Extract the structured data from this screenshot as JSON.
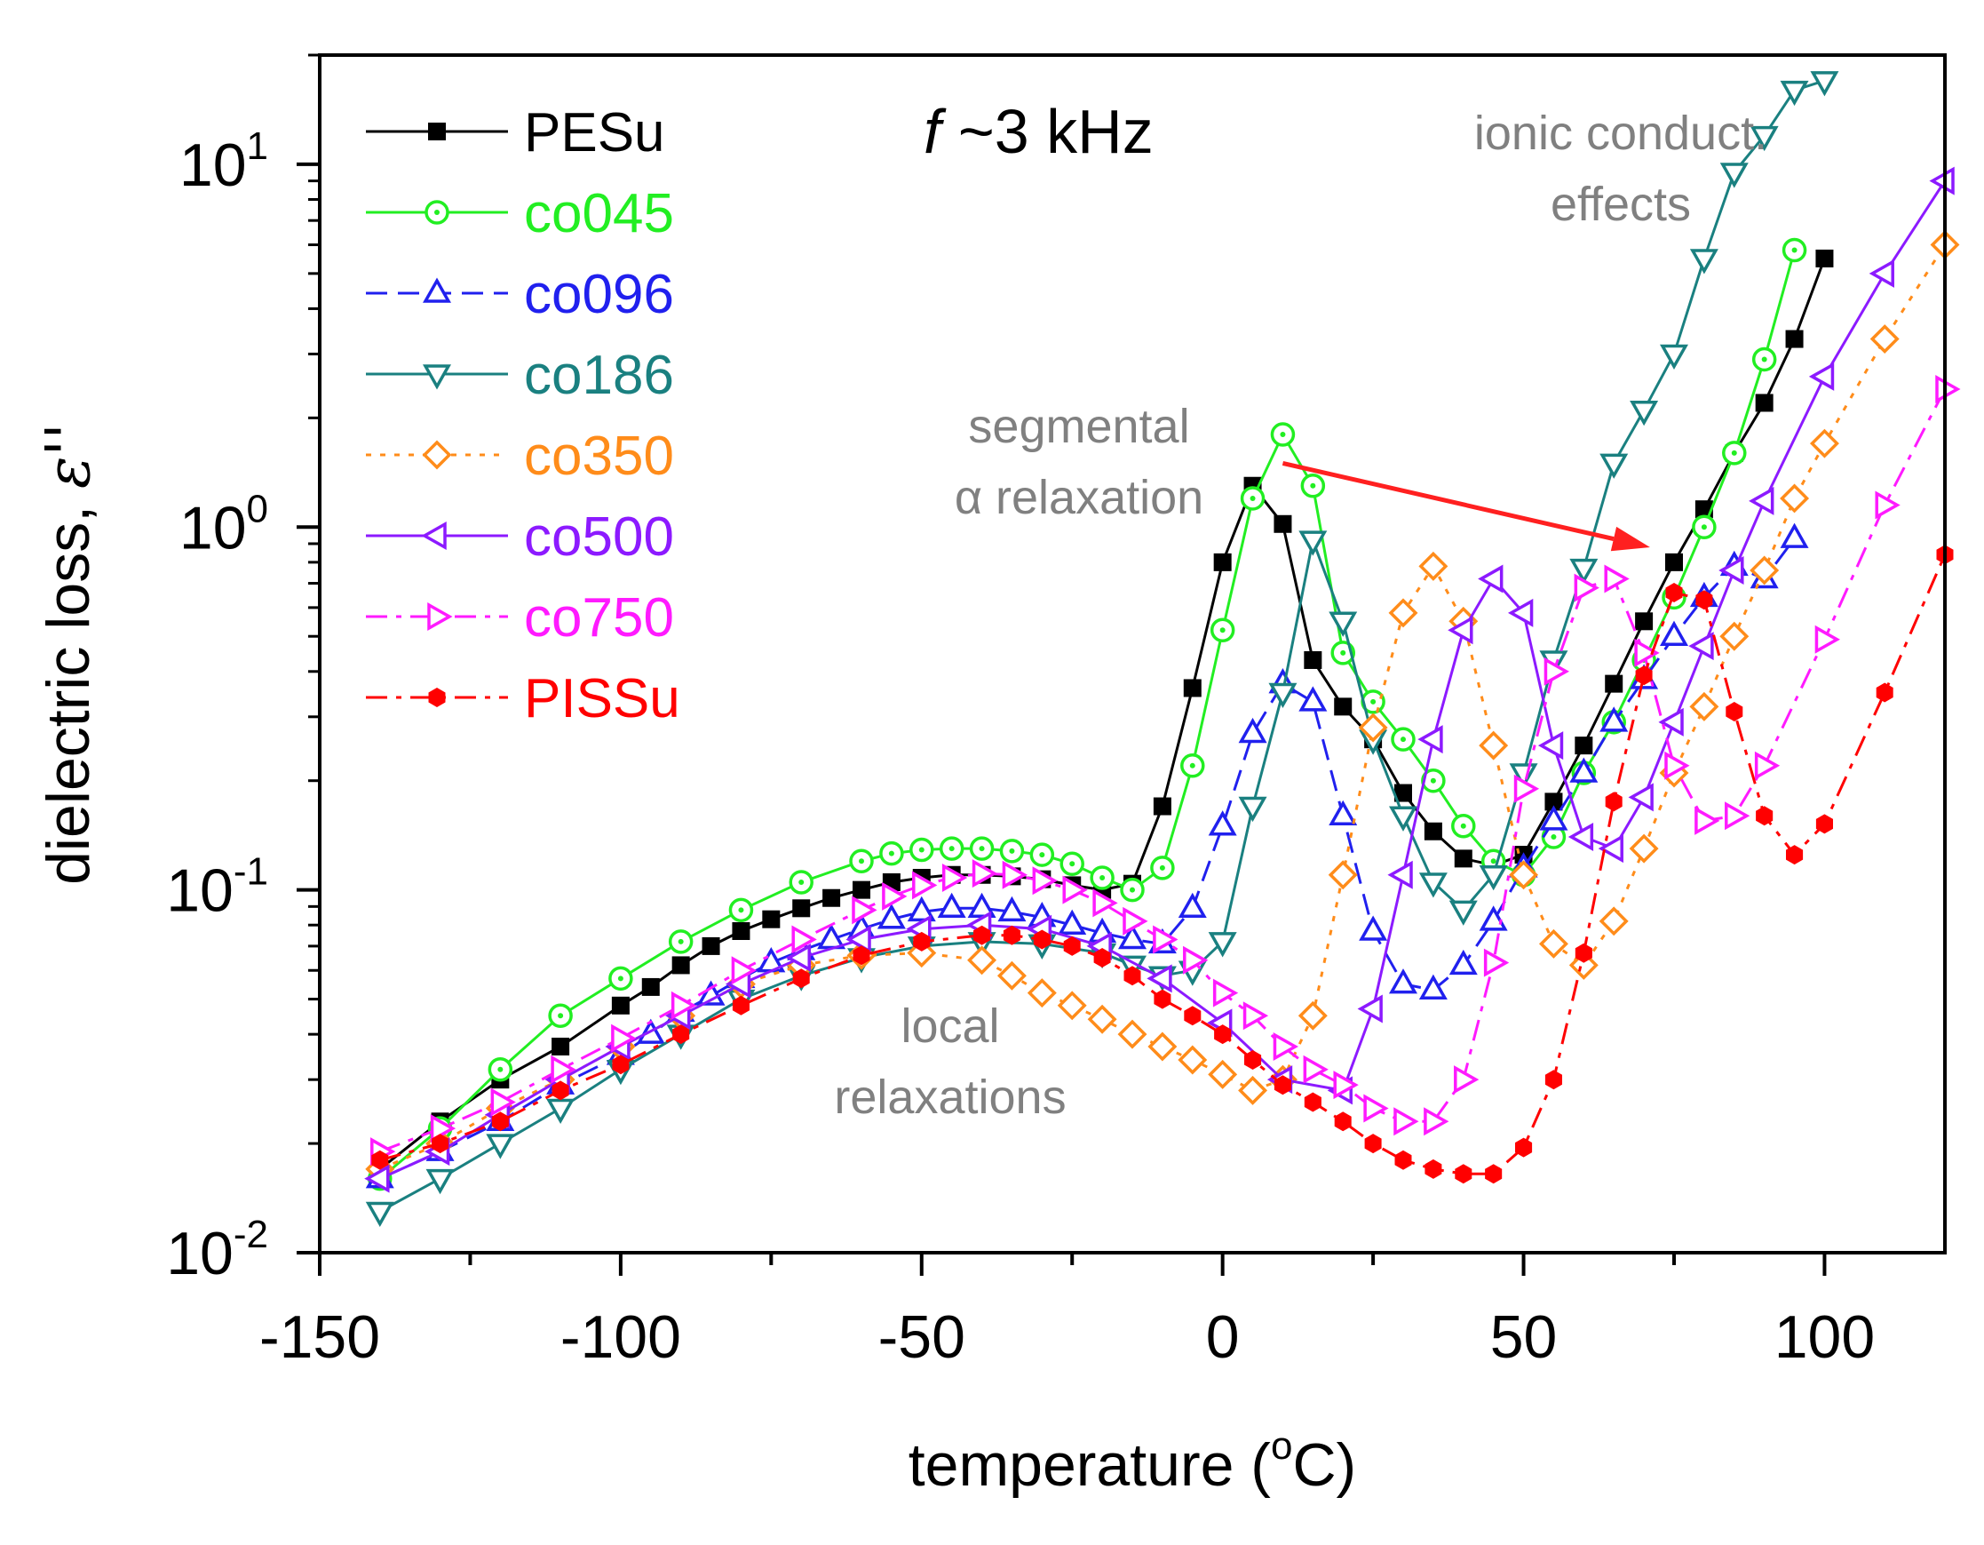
{
  "chart_data": {
    "type": "line",
    "title": "f ~3 kHz",
    "title_parts": {
      "italic": "f",
      "rest": " ~3 kHz"
    },
    "xlabel": "temperature (oC)",
    "xlabel_parts": {
      "pre": "temperature (",
      "sup": "o",
      "post": "C)"
    },
    "ylabel": "dielectric loss, ε''",
    "ylabel_parts": {
      "pre": "dielectric loss, ",
      "italic": "ε''"
    },
    "xlim": [
      -150,
      120
    ],
    "ylim": [
      0.01,
      20
    ],
    "yscale": "log",
    "xticks": [
      {
        "value": -150,
        "label": "-150"
      },
      {
        "value": -100,
        "label": "-100"
      },
      {
        "value": -50,
        "label": "-50"
      },
      {
        "value": 0,
        "label": "0"
      },
      {
        "value": 50,
        "label": "50"
      },
      {
        "value": 100,
        "label": "100"
      }
    ],
    "yticks": [
      {
        "value": 0.01,
        "base": "10",
        "exp": "-2"
      },
      {
        "value": 0.1,
        "base": "10",
        "exp": "-1"
      },
      {
        "value": 1,
        "base": "10",
        "exp": "0"
      },
      {
        "value": 10,
        "base": "10",
        "exp": "1"
      }
    ],
    "grid": false,
    "legend_position": "top-left",
    "annotations": [
      {
        "id": "ionic",
        "lines": [
          "ionic conduct.",
          "effects"
        ]
      },
      {
        "id": "segmental",
        "lines": [
          "segmental",
          "α relaxation"
        ]
      },
      {
        "id": "local",
        "lines": [
          "local",
          "relaxations"
        ]
      }
    ],
    "arrow": {
      "from": [
        10,
        1.5
      ],
      "to": [
        71,
        0.88
      ],
      "color": "#ff2020"
    },
    "series": [
      {
        "name": "PESu",
        "color": "#000000",
        "marker": "square-filled",
        "dash": "solid",
        "x": [
          -140,
          -130,
          -120,
          -110,
          -100,
          -95,
          -90,
          -85,
          -80,
          -75,
          -70,
          -65,
          -60,
          -55,
          -50,
          -45,
          -40,
          -35,
          -30,
          -25,
          -20,
          -15,
          -10,
          -5,
          0,
          5,
          10,
          15,
          20,
          25,
          30,
          35,
          40,
          45,
          50,
          55,
          60,
          65,
          70,
          75,
          80,
          85,
          90,
          95,
          100
        ],
        "y": [
          0.017,
          0.023,
          0.03,
          0.037,
          0.048,
          0.054,
          0.062,
          0.07,
          0.077,
          0.083,
          0.089,
          0.095,
          0.1,
          0.105,
          0.108,
          0.11,
          0.11,
          0.109,
          0.107,
          0.103,
          0.1,
          0.104,
          0.17,
          0.36,
          0.8,
          1.3,
          1.02,
          0.43,
          0.32,
          0.26,
          0.185,
          0.145,
          0.122,
          0.117,
          0.125,
          0.175,
          0.25,
          0.37,
          0.55,
          0.8,
          1.12,
          1.6,
          2.2,
          3.3,
          5.5
        ]
      },
      {
        "name": "co045",
        "color": "#22ee22",
        "marker": "circle-dot",
        "dash": "solid",
        "x": [
          -140,
          -130,
          -120,
          -110,
          -100,
          -90,
          -80,
          -70,
          -60,
          -55,
          -50,
          -45,
          -40,
          -35,
          -30,
          -25,
          -20,
          -15,
          -10,
          -5,
          0,
          5,
          10,
          15,
          20,
          25,
          30,
          35,
          40,
          45,
          50,
          55,
          60,
          65,
          70,
          75,
          80,
          85,
          90,
          95
        ],
        "y": [
          0.016,
          0.022,
          0.032,
          0.045,
          0.057,
          0.072,
          0.088,
          0.105,
          0.12,
          0.126,
          0.129,
          0.13,
          0.13,
          0.128,
          0.125,
          0.118,
          0.108,
          0.1,
          0.115,
          0.22,
          0.52,
          1.2,
          1.8,
          1.3,
          0.45,
          0.33,
          0.26,
          0.2,
          0.15,
          0.12,
          0.11,
          0.14,
          0.21,
          0.29,
          0.43,
          0.64,
          1.0,
          1.6,
          2.9,
          5.8
        ]
      },
      {
        "name": "co096",
        "color": "#2020ee",
        "marker": "triangle-up-open",
        "dash": "dash",
        "x": [
          -140,
          -130,
          -120,
          -110,
          -100,
          -95,
          -90,
          -85,
          -80,
          -75,
          -70,
          -65,
          -60,
          -55,
          -50,
          -45,
          -40,
          -35,
          -30,
          -25,
          -20,
          -15,
          -10,
          -5,
          0,
          5,
          10,
          15,
          20,
          25,
          30,
          35,
          40,
          45,
          50,
          55,
          60,
          65,
          70,
          75,
          80,
          85,
          90,
          95
        ],
        "y": [
          0.016,
          0.019,
          0.023,
          0.029,
          0.035,
          0.04,
          0.046,
          0.051,
          0.057,
          0.063,
          0.068,
          0.073,
          0.078,
          0.083,
          0.087,
          0.089,
          0.089,
          0.087,
          0.084,
          0.08,
          0.076,
          0.073,
          0.071,
          0.089,
          0.15,
          0.27,
          0.37,
          0.33,
          0.16,
          0.077,
          0.055,
          0.053,
          0.062,
          0.082,
          0.115,
          0.155,
          0.21,
          0.29,
          0.38,
          0.5,
          0.64,
          0.78,
          0.72,
          0.93
        ]
      },
      {
        "name": "co186",
        "color": "#1a8080",
        "marker": "triangle-down-open",
        "dash": "solid",
        "x": [
          -140,
          -130,
          -120,
          -110,
          -100,
          -90,
          -80,
          -70,
          -60,
          -50,
          -40,
          -30,
          -20,
          -15,
          -10,
          -5,
          0,
          5,
          10,
          15,
          20,
          25,
          30,
          35,
          40,
          45,
          50,
          55,
          60,
          65,
          70,
          75,
          80,
          85,
          90,
          95,
          100
        ],
        "y": [
          0.013,
          0.016,
          0.02,
          0.025,
          0.032,
          0.04,
          0.05,
          0.058,
          0.065,
          0.07,
          0.072,
          0.071,
          0.067,
          0.062,
          0.058,
          0.06,
          0.072,
          0.17,
          0.35,
          0.92,
          0.55,
          0.26,
          0.16,
          0.105,
          0.088,
          0.11,
          0.21,
          0.43,
          0.77,
          1.5,
          2.1,
          3.0,
          5.5,
          9.5,
          12.0,
          16.0,
          17.0
        ]
      },
      {
        "name": "co350",
        "color": "#ff8c1a",
        "marker": "diamond-open",
        "dash": "dot",
        "x": [
          -140,
          -130,
          -120,
          -110,
          -100,
          -90,
          -80,
          -70,
          -60,
          -50,
          -40,
          -35,
          -30,
          -25,
          -20,
          -15,
          -10,
          -5,
          0,
          5,
          10,
          15,
          20,
          25,
          30,
          35,
          40,
          45,
          50,
          55,
          60,
          65,
          70,
          75,
          80,
          85,
          90,
          95,
          100,
          110,
          120
        ],
        "y": [
          0.017,
          0.02,
          0.025,
          0.03,
          0.037,
          0.045,
          0.055,
          0.062,
          0.066,
          0.067,
          0.064,
          0.058,
          0.052,
          0.048,
          0.044,
          0.04,
          0.037,
          0.034,
          0.031,
          0.028,
          0.03,
          0.045,
          0.11,
          0.28,
          0.58,
          0.78,
          0.55,
          0.25,
          0.11,
          0.071,
          0.062,
          0.082,
          0.13,
          0.21,
          0.32,
          0.5,
          0.76,
          1.2,
          1.7,
          3.3,
          6.0
        ]
      },
      {
        "name": "co500",
        "color": "#8c1aff",
        "marker": "triangle-left-open",
        "dash": "solid",
        "x": [
          -140,
          -130,
          -120,
          -110,
          -100,
          -90,
          -80,
          -70,
          -60,
          -50,
          -40,
          -30,
          -20,
          -10,
          0,
          10,
          20,
          25,
          30,
          35,
          40,
          45,
          50,
          55,
          60,
          65,
          70,
          75,
          80,
          85,
          90,
          100,
          110,
          120
        ],
        "y": [
          0.016,
          0.019,
          0.024,
          0.03,
          0.037,
          0.045,
          0.055,
          0.065,
          0.073,
          0.078,
          0.08,
          0.078,
          0.07,
          0.057,
          0.043,
          0.03,
          0.028,
          0.047,
          0.11,
          0.26,
          0.52,
          0.72,
          0.58,
          0.25,
          0.14,
          0.13,
          0.18,
          0.29,
          0.47,
          0.76,
          1.18,
          2.6,
          5.0,
          9.0
        ]
      },
      {
        "name": "co750",
        "color": "#ff1aff",
        "marker": "triangle-right-open",
        "dash": "dashdot",
        "x": [
          -140,
          -130,
          -120,
          -110,
          -100,
          -90,
          -80,
          -70,
          -60,
          -55,
          -50,
          -45,
          -40,
          -35,
          -30,
          -25,
          -20,
          -15,
          -10,
          -5,
          0,
          5,
          10,
          15,
          20,
          25,
          30,
          35,
          40,
          45,
          50,
          55,
          60,
          65,
          70,
          75,
          80,
          85,
          90,
          100,
          110,
          120
        ],
        "y": [
          0.019,
          0.022,
          0.026,
          0.032,
          0.039,
          0.048,
          0.06,
          0.073,
          0.088,
          0.096,
          0.103,
          0.108,
          0.111,
          0.11,
          0.106,
          0.1,
          0.092,
          0.082,
          0.073,
          0.064,
          0.052,
          0.045,
          0.037,
          0.032,
          0.029,
          0.025,
          0.023,
          0.023,
          0.03,
          0.063,
          0.19,
          0.4,
          0.68,
          0.72,
          0.45,
          0.22,
          0.155,
          0.16,
          0.22,
          0.49,
          1.15,
          2.4
        ]
      },
      {
        "name": "PISSu",
        "color": "#ff0000",
        "marker": "hexagon-filled",
        "dash": "dashdot",
        "x": [
          -140,
          -130,
          -120,
          -110,
          -100,
          -90,
          -80,
          -70,
          -60,
          -50,
          -40,
          -35,
          -30,
          -25,
          -20,
          -15,
          -10,
          -5,
          0,
          5,
          10,
          15,
          20,
          25,
          30,
          35,
          40,
          45,
          50,
          55,
          60,
          65,
          70,
          75,
          80,
          85,
          90,
          95,
          100,
          110,
          120
        ],
        "y": [
          0.018,
          0.02,
          0.023,
          0.028,
          0.033,
          0.04,
          0.048,
          0.057,
          0.066,
          0.072,
          0.075,
          0.075,
          0.073,
          0.07,
          0.065,
          0.058,
          0.05,
          0.045,
          0.04,
          0.034,
          0.029,
          0.026,
          0.023,
          0.02,
          0.018,
          0.017,
          0.0165,
          0.0165,
          0.0195,
          0.03,
          0.067,
          0.175,
          0.39,
          0.66,
          0.63,
          0.31,
          0.16,
          0.125,
          0.152,
          0.35,
          0.84
        ]
      }
    ]
  }
}
